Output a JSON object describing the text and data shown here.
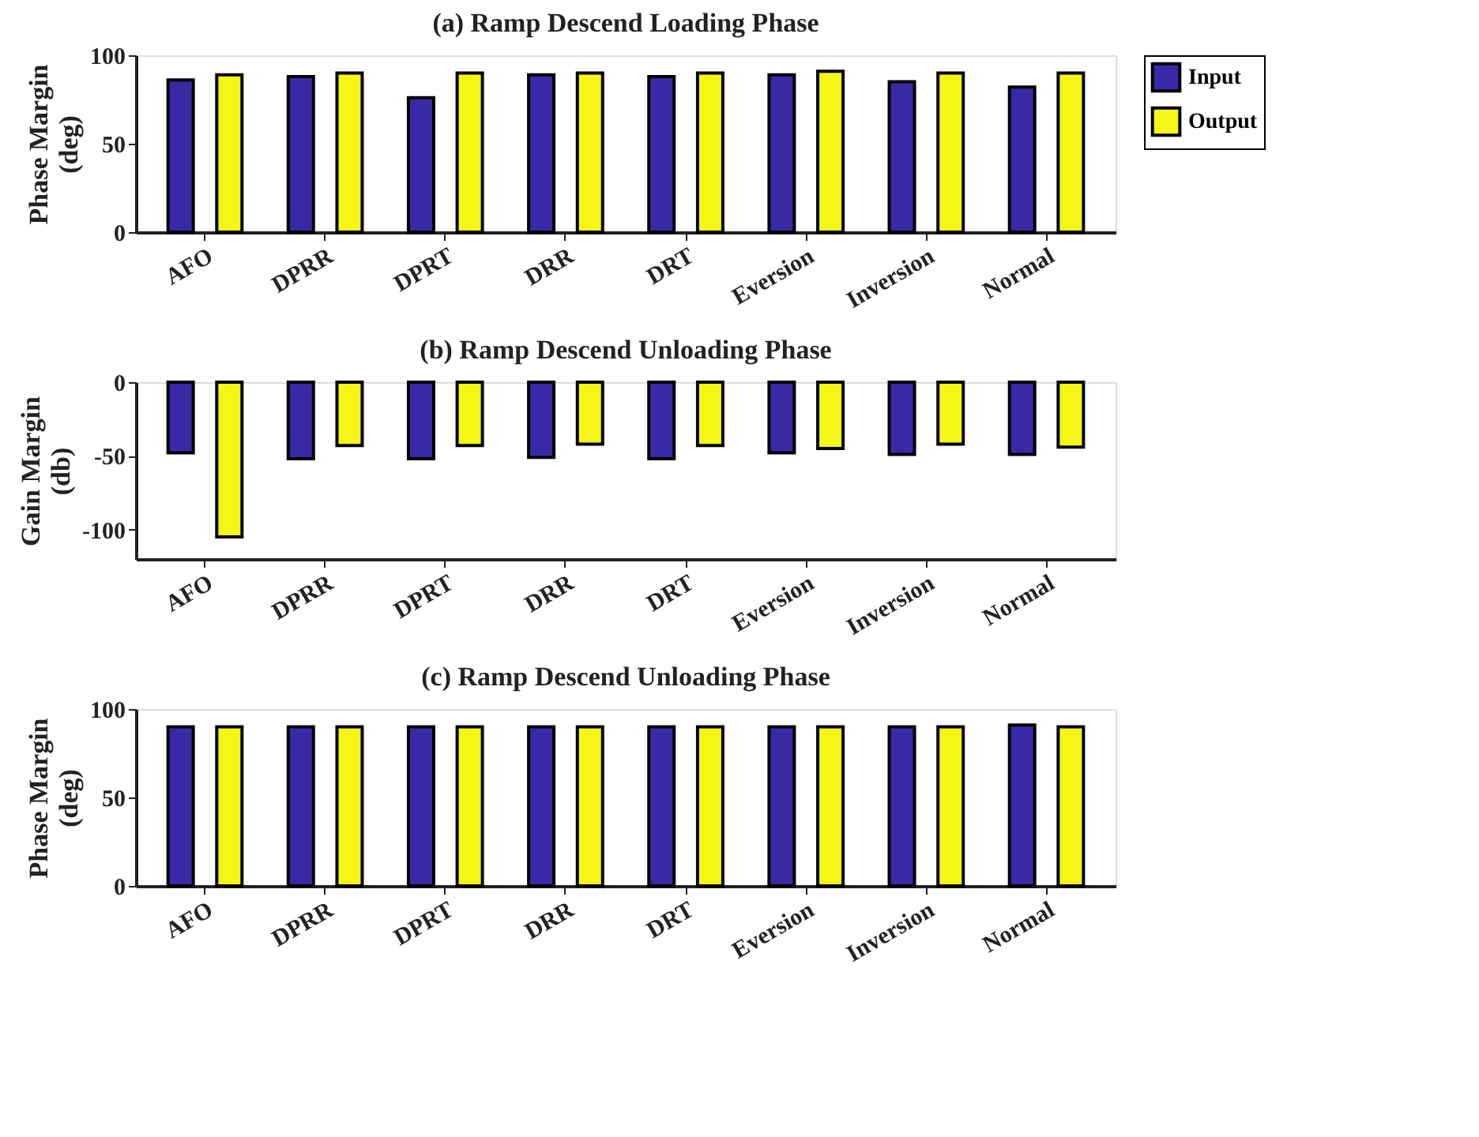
{
  "chart_data": [
    {
      "type": "bar",
      "title": "(a) Ramp Descend Loading Phase",
      "ylabel": "Phase Margin\n(deg)",
      "categories": [
        "AFO",
        "DPRR",
        "DPRT",
        "DRR",
        "DRT",
        "Eversion",
        "Inversion",
        "Normal"
      ],
      "series": [
        {
          "name": "Input",
          "color": "#3a29a6",
          "values": [
            86,
            88,
            76,
            89,
            88,
            89,
            85,
            82
          ]
        },
        {
          "name": "Output",
          "color": "#f5f516",
          "values": [
            89,
            90,
            90,
            90,
            90,
            91,
            90,
            90
          ]
        }
      ],
      "ylim": [
        0,
        100
      ],
      "yticks": [
        0,
        50,
        100
      ],
      "grid": false,
      "legend": "top right"
    },
    {
      "type": "bar",
      "title": "(b) Ramp Descend Unloading Phase",
      "ylabel": "Gain Margin\n(db)",
      "categories": [
        "AFO",
        "DPRR",
        "DPRT",
        "DRR",
        "DRT",
        "Eversion",
        "Inversion",
        "Normal"
      ],
      "series": [
        {
          "color": "#3a29a6",
          "values": [
            -48,
            -52,
            -52,
            -51,
            -52,
            -48,
            -49,
            -49
          ]
        },
        {
          "color": "#f5f516",
          "values": [
            -105,
            -43,
            -43,
            -42,
            -43,
            -45,
            -42,
            -44
          ]
        }
      ],
      "ylim": [
        -120,
        0
      ],
      "yticks": [
        -100,
        -50,
        0
      ],
      "grid": false
    },
    {
      "type": "bar",
      "title": "(c) Ramp Descend Unloading Phase",
      "ylabel": "Phase Margin\n(deg)",
      "categories": [
        "AFO",
        "DPRR",
        "DPRT",
        "DRR",
        "DRT",
        "Eversion",
        "Inversion",
        "Normal"
      ],
      "series": [
        {
          "color": "#3a29a6",
          "values": [
            90,
            90,
            90,
            90,
            90,
            90,
            90,
            91
          ]
        },
        {
          "color": "#f5f516",
          "values": [
            90,
            90,
            90,
            90,
            90,
            90,
            90,
            90
          ]
        }
      ],
      "ylim": [
        0,
        100
      ],
      "yticks": [
        0,
        50,
        100
      ],
      "grid": false
    }
  ]
}
